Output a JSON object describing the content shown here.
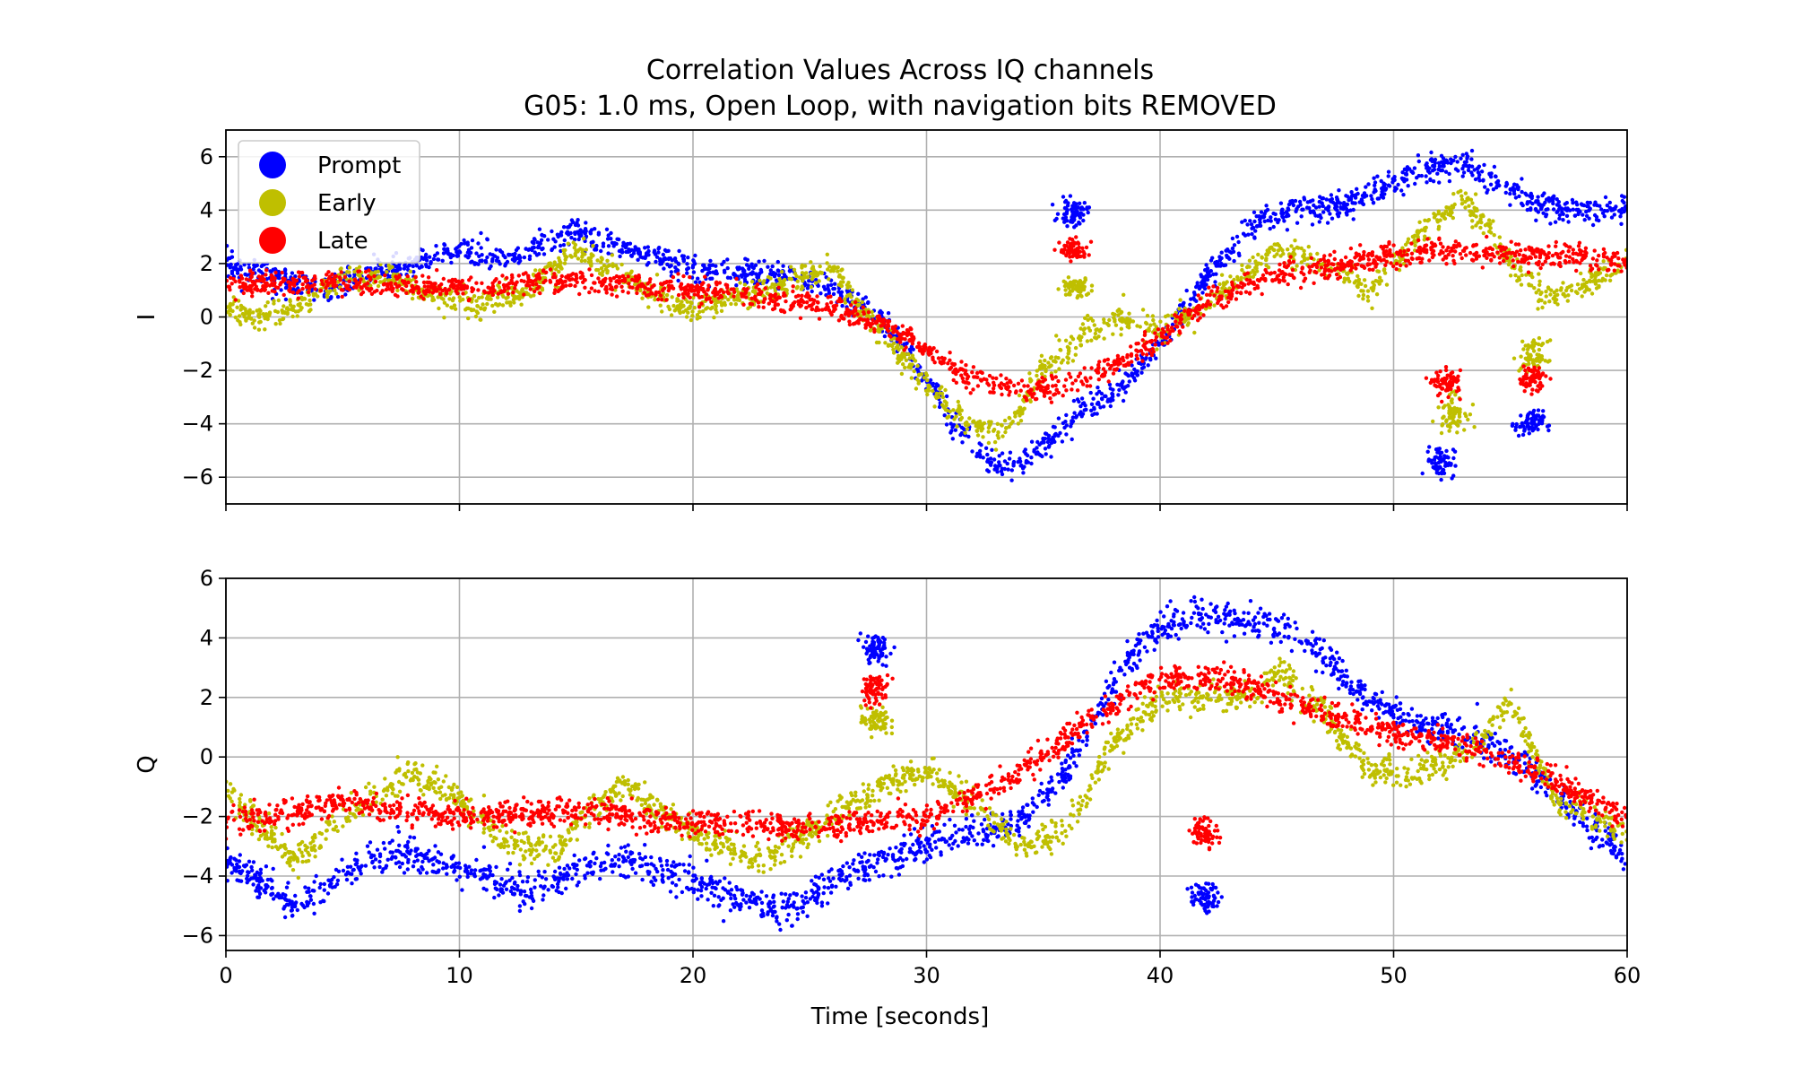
{
  "chart_data": {
    "type": "scatter",
    "title": "Correlation Values Across IQ channels",
    "subtitle": "G05: 1.0 ms, Open Loop, with navigation bits REMOVED",
    "xlabel": "Time [seconds]",
    "xlim": [
      0,
      60
    ],
    "xticks": [
      0,
      10,
      20,
      30,
      40,
      50,
      60
    ],
    "xtick_labels": [
      "0",
      "10",
      "20",
      "30",
      "40",
      "50",
      "60"
    ],
    "grid": true,
    "legend_position": "upper-left (top panel)",
    "series_styles": [
      {
        "name": "Prompt",
        "color": "#0000ff"
      },
      {
        "name": "Early",
        "color": "#bfbf00"
      },
      {
        "name": "Late",
        "color": "#ff0000"
      }
    ],
    "panels": [
      {
        "ylabel": "I",
        "ylim": [
          -7,
          7
        ],
        "yticks": [
          -6,
          -4,
          -2,
          0,
          2,
          4,
          6
        ],
        "ytick_labels": [
          "−6",
          "−4",
          "−2",
          "0",
          "2",
          "4",
          "6"
        ],
        "series": [
          {
            "name": "Prompt",
            "x": [
              0,
              2,
              4,
              6,
              8,
              10,
              12,
              14,
              15,
              16,
              18,
              20,
              22,
              24,
              26,
              28,
              30,
              31,
              32,
              33,
              34,
              35,
              36,
              38,
              40,
              42,
              44,
              46,
              48,
              50,
              52,
              53,
              54,
              56,
              58,
              60
            ],
            "y": [
              2.0,
              1.5,
              1.0,
              1.5,
              2.0,
              2.5,
              2.2,
              2.8,
              3.2,
              2.8,
              2.3,
              1.8,
              1.6,
              1.5,
              1.0,
              0.0,
              -2.2,
              -3.8,
              -4.8,
              -5.6,
              -5.5,
              -4.8,
              -4.0,
              -2.8,
              -1.0,
              1.5,
              3.5,
              4.0,
              4.2,
              5.0,
              5.7,
              5.8,
              5.2,
              4.2,
              4.0,
              4.0
            ],
            "spread": 0.45,
            "outliers": [
              {
                "x": 36.3,
                "y": 3.9,
                "spread": 0.4
              },
              {
                "x": 52.0,
                "y": -5.4,
                "spread": 0.5
              },
              {
                "x": 55.8,
                "y": -4.0,
                "spread": 0.4
              }
            ]
          },
          {
            "name": "Early",
            "x": [
              0,
              1,
              3,
              5,
              7,
              9,
              11,
              13,
              15,
              17,
              19,
              20,
              21,
              23,
              25,
              26,
              27,
              29,
              31,
              33,
              34,
              35,
              37,
              38,
              40,
              42,
              45,
              47,
              49,
              51,
              53,
              54,
              55,
              56,
              57,
              60
            ],
            "y": [
              0.5,
              0.0,
              0.3,
              1.5,
              1.5,
              0.8,
              0.5,
              1.0,
              2.5,
              1.5,
              0.5,
              0.3,
              0.5,
              1.0,
              1.5,
              1.8,
              0.5,
              -1.5,
              -3.5,
              -4.5,
              -3.5,
              -2.0,
              -0.5,
              0.0,
              -0.5,
              0.5,
              2.5,
              2.0,
              1.0,
              3.0,
              4.5,
              3.5,
              2.0,
              1.0,
              0.8,
              2.0
            ],
            "spread": 0.45,
            "outliers": [
              {
                "x": 36.4,
                "y": 1.1,
                "spread": 0.3
              },
              {
                "x": 52.5,
                "y": -3.5,
                "spread": 0.6
              },
              {
                "x": 56.0,
                "y": -1.5,
                "spread": 0.5
              }
            ]
          },
          {
            "name": "Late",
            "x": [
              0,
              5,
              10,
              15,
              20,
              25,
              28,
              30,
              32,
              34,
              36,
              38,
              40,
              42,
              45,
              48,
              50,
              52,
              54,
              56,
              58,
              60
            ],
            "y": [
              1.2,
              1.3,
              1.1,
              1.4,
              1.0,
              0.5,
              -0.2,
              -1.2,
              -2.3,
              -2.8,
              -2.6,
              -1.8,
              -0.8,
              0.5,
              1.6,
              2.0,
              2.3,
              2.5,
              2.4,
              2.3,
              2.2,
              2.1
            ],
            "spread": 0.4,
            "outliers": [
              {
                "x": 36.3,
                "y": 2.5,
                "spread": 0.3
              },
              {
                "x": 52.3,
                "y": -2.5,
                "spread": 0.4
              },
              {
                "x": 55.9,
                "y": -2.3,
                "spread": 0.4
              }
            ]
          }
        ]
      },
      {
        "ylabel": "Q",
        "ylim": [
          -6.5,
          6
        ],
        "yticks": [
          -6,
          -4,
          -2,
          0,
          2,
          4,
          6
        ],
        "ytick_labels": [
          "−6",
          "−4",
          "−2",
          "0",
          "2",
          "4",
          "6"
        ],
        "series": [
          {
            "name": "Prompt",
            "x": [
              0,
              2,
              3,
              5,
              7,
              9,
              11,
              13,
              15,
              17,
              19,
              21,
              23,
              24,
              26,
              28,
              30,
              32,
              34,
              36,
              38,
              40,
              42,
              44,
              46,
              48,
              50,
              52,
              54,
              56,
              58,
              60
            ],
            "y": [
              -3.5,
              -4.5,
              -5.2,
              -4.0,
              -3.2,
              -3.5,
              -4.0,
              -4.5,
              -3.8,
              -3.5,
              -3.8,
              -4.5,
              -5.0,
              -5.3,
              -4.2,
              -3.5,
              -3.0,
              -2.6,
              -2.2,
              -0.5,
              2.5,
              4.5,
              4.8,
              4.5,
              4.2,
              2.5,
              1.5,
              1.0,
              0.5,
              -0.5,
              -2.0,
              -3.3
            ],
            "spread": 0.5,
            "outliers": [
              {
                "x": 27.8,
                "y": 3.6,
                "spread": 0.4
              },
              {
                "x": 41.9,
                "y": -4.7,
                "spread": 0.4
              }
            ]
          },
          {
            "name": "Early",
            "x": [
              0,
              1,
              3,
              5,
              8,
              10,
              12,
              14,
              16,
              17,
              19,
              21,
              23,
              24,
              26,
              28,
              30,
              32,
              34,
              36,
              38,
              40,
              42,
              44,
              45,
              47,
              49,
              51,
              53,
              55,
              57,
              60
            ],
            "y": [
              -1.0,
              -2.0,
              -3.5,
              -2.0,
              -0.5,
              -1.5,
              -2.8,
              -3.2,
              -1.5,
              -1.0,
              -2.0,
              -3.0,
              -3.5,
              -3.0,
              -2.0,
              -1.0,
              -0.5,
              -1.5,
              -3.0,
              -2.5,
              0.5,
              2.0,
              2.0,
              2.0,
              3.0,
              1.5,
              -0.5,
              -0.5,
              0.0,
              1.8,
              -1.5,
              -2.5
            ],
            "spread": 0.45,
            "outliers": [
              {
                "x": 27.8,
                "y": 1.2,
                "spread": 0.4
              }
            ]
          },
          {
            "name": "Late",
            "x": [
              0,
              5,
              10,
              15,
              20,
              25,
              30,
              33,
              35,
              37,
              39,
              41,
              43,
              45,
              48,
              50,
              52,
              54,
              56,
              58,
              60
            ],
            "y": [
              -2.2,
              -1.5,
              -2.0,
              -1.8,
              -2.2,
              -2.4,
              -2.0,
              -1.0,
              0.0,
              1.2,
              2.3,
              2.7,
              2.6,
              2.0,
              1.2,
              0.8,
              0.5,
              0.2,
              -0.5,
              -1.3,
              -2.0
            ],
            "spread": 0.4,
            "outliers": [
              {
                "x": 27.8,
                "y": 2.3,
                "spread": 0.4
              },
              {
                "x": 41.9,
                "y": -2.5,
                "spread": 0.4
              }
            ]
          }
        ]
      }
    ]
  }
}
